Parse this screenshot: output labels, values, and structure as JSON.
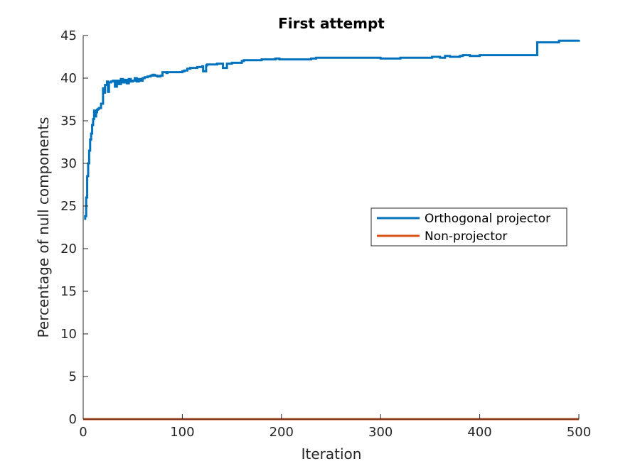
{
  "chart_data": {
    "type": "line",
    "title": "First attempt",
    "xlabel": "Iteration",
    "ylabel": "Percentage of null components",
    "xlim": [
      0,
      500
    ],
    "ylim": [
      0,
      45
    ],
    "xticks": [
      0,
      100,
      200,
      300,
      400,
      500
    ],
    "yticks": [
      0,
      5,
      10,
      15,
      20,
      25,
      30,
      35,
      40,
      45
    ],
    "grid": false,
    "legend_position": "center-right",
    "series": [
      {
        "name": "Orthogonal projector",
        "color": "#0072BD",
        "x": [
          1,
          2,
          3,
          4,
          5,
          6,
          7,
          8,
          9,
          10,
          11,
          12,
          13,
          14,
          15,
          16,
          18,
          20,
          21,
          22,
          24,
          25,
          26,
          28,
          30,
          32,
          34,
          36,
          38,
          40,
          42,
          44,
          46,
          48,
          50,
          52,
          54,
          56,
          58,
          60,
          62,
          65,
          68,
          70,
          72,
          75,
          78,
          80,
          84,
          85,
          88,
          90,
          95,
          100,
          102,
          105,
          108,
          110,
          115,
          120,
          121,
          124,
          125,
          130,
          135,
          140,
          141,
          145,
          150,
          155,
          160,
          162,
          165,
          170,
          175,
          180,
          190,
          194,
          198,
          200,
          210,
          220,
          230,
          235,
          240,
          260,
          280,
          300,
          301,
          310,
          320,
          340,
          350,
          352,
          360,
          365,
          370,
          380,
          383,
          390,
          400,
          420,
          440,
          455,
          458,
          460,
          470,
          480,
          500
        ],
        "y": [
          23.5,
          23.8,
          26,
          28.5,
          30,
          31.5,
          32.8,
          33.5,
          34.5,
          35.2,
          36.2,
          35.5,
          36,
          36.3,
          36.4,
          36.5,
          37,
          38.8,
          38.3,
          39.2,
          39.6,
          38.4,
          39.5,
          39.6,
          39.7,
          39,
          39.7,
          39.3,
          39.9,
          39.5,
          39.8,
          39.4,
          39.9,
          39.6,
          39.7,
          40,
          39.6,
          39.9,
          39.7,
          40,
          40.1,
          40.2,
          40.3,
          40.4,
          40.3,
          40.2,
          40.3,
          40.7,
          40.6,
          40.7,
          40.7,
          40.7,
          40.7,
          40.8,
          40.9,
          41.1,
          41.2,
          41.2,
          41.3,
          41.4,
          40.8,
          41.5,
          41.6,
          41.6,
          41.7,
          41.7,
          41.2,
          41.7,
          41.8,
          41.8,
          42.0,
          42.1,
          42.1,
          42.1,
          42.1,
          42.2,
          42.2,
          42.3,
          42.2,
          42.2,
          42.2,
          42.2,
          42.3,
          42.4,
          42.4,
          42.4,
          42.4,
          42.3,
          42.3,
          42.3,
          42.4,
          42.4,
          42.4,
          42.5,
          42.4,
          42.6,
          42.5,
          42.6,
          42.7,
          42.6,
          42.7,
          42.7,
          42.7,
          42.7,
          44.2,
          44.2,
          44.2,
          44.4,
          44.5
        ]
      },
      {
        "name": "Non-projector",
        "color": "#D95319",
        "x": [
          0,
          500
        ],
        "y": [
          0,
          0
        ]
      }
    ]
  }
}
